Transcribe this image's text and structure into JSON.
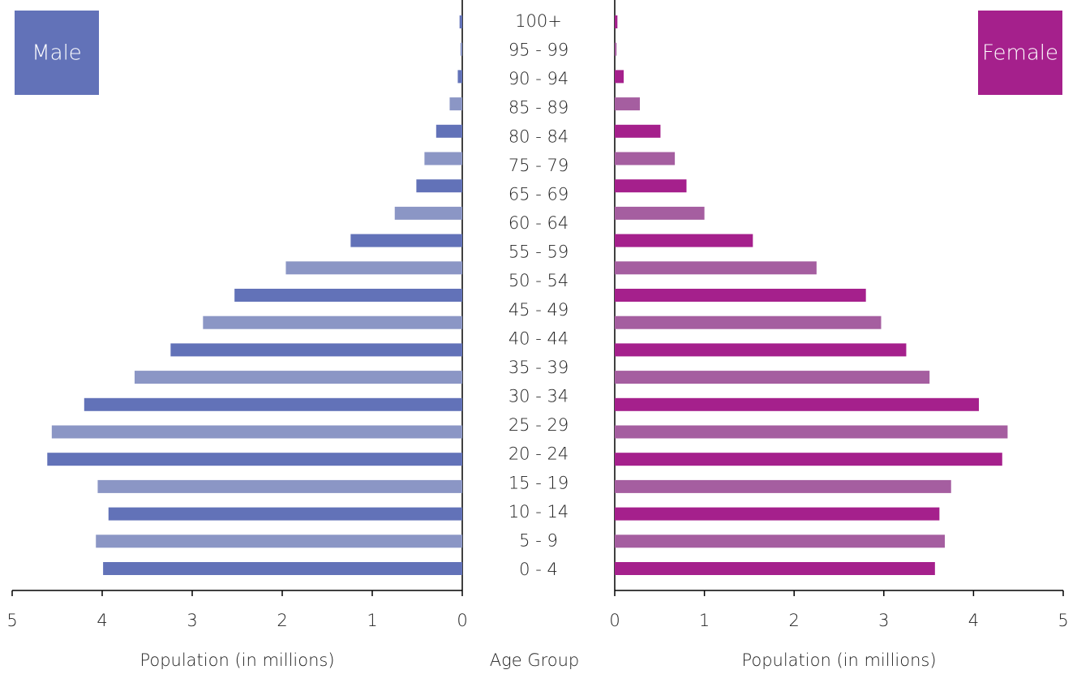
{
  "chart_data": {
    "type": "pyramid",
    "categories": [
      "100+",
      "95 - 99",
      "90 - 94",
      "85 - 89",
      "80 - 84",
      "75 - 79",
      null,
      "65 - 69",
      "60 - 64",
      "55 - 59",
      "50 - 54",
      "45 - 49",
      "40 - 44",
      "35 - 39",
      "30 - 34",
      "25 - 29",
      "20 - 24",
      "15 - 19",
      "10 - 14",
      "5 - 9",
      "0 - 4"
    ],
    "center_label": "Age Group",
    "series": [
      {
        "name": "Male",
        "side": "left",
        "color": "#6272b8",
        "colors": [
          "#6272b8",
          "#8b96c5"
        ],
        "values": [
          0.03,
          0.02,
          0.05,
          0.14,
          0.29,
          0.42,
          0.51,
          0.75,
          1.24,
          1.96,
          2.53,
          2.88,
          3.24,
          3.64,
          4.2,
          4.56,
          4.61,
          4.05,
          3.93,
          4.07,
          3.99
        ],
        "xlabel": "Population (in millions)",
        "xlim": [
          0,
          5
        ],
        "xticks": [
          0,
          1,
          2,
          3,
          4,
          5
        ]
      },
      {
        "name": "Female",
        "side": "right",
        "color": "#a5208c",
        "colors": [
          "#a5208c",
          "#a55ea0"
        ],
        "values": [
          0.03,
          0.02,
          0.1,
          0.28,
          0.51,
          0.67,
          0.8,
          1.0,
          1.54,
          2.25,
          2.8,
          2.97,
          3.25,
          3.51,
          4.06,
          4.38,
          4.32,
          3.75,
          3.62,
          3.68,
          3.57
        ],
        "xlabel": "Population (in millions)",
        "xlim": [
          0,
          5
        ],
        "xticks": [
          0,
          1,
          2,
          3,
          4,
          5
        ]
      }
    ]
  }
}
